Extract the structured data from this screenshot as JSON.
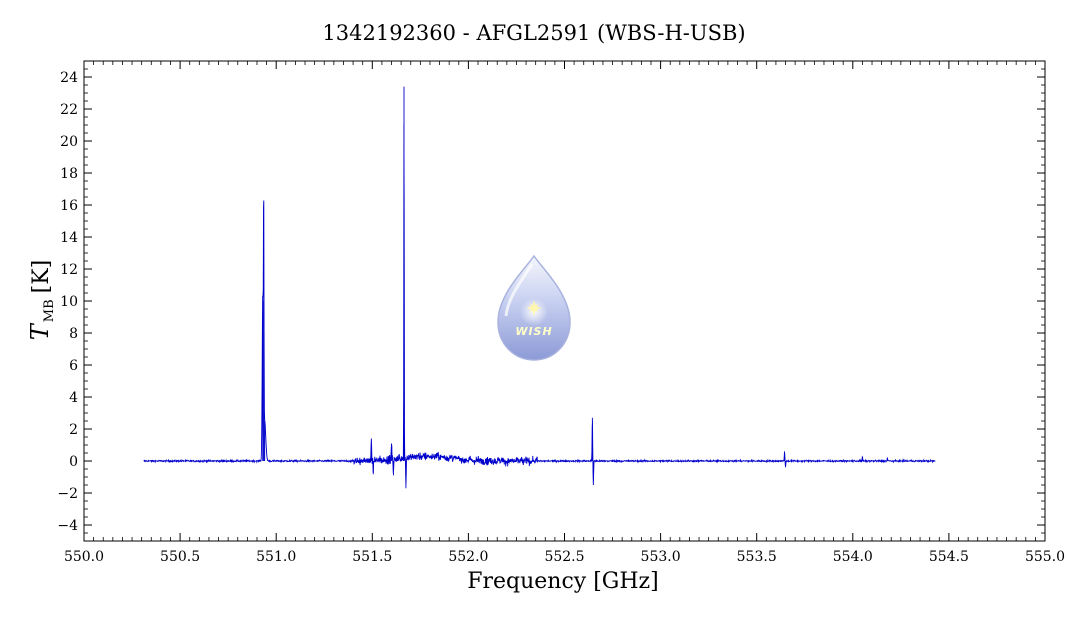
{
  "chart_data": {
    "type": "line",
    "title": "1342192360 - AFGL2591 (WBS-H-USB)",
    "xlabel": "Frequency [GHz]",
    "ylabel_main": "T",
    "ylabel_sub": "MB",
    "ylabel_unit": "[K]",
    "xlim": [
      550.0,
      555.0
    ],
    "ylim": [
      -5,
      25
    ],
    "x_ticks": [
      550.0,
      550.5,
      551.0,
      551.5,
      552.0,
      552.5,
      553.0,
      553.5,
      554.0,
      554.5,
      555.0
    ],
    "x_tick_labels": [
      "550.0",
      "550.5",
      "551.0",
      "551.5",
      "552.0",
      "552.5",
      "553.0",
      "553.5",
      "554.0",
      "554.5",
      "555.0"
    ],
    "y_ticks": [
      -4,
      -2,
      0,
      2,
      4,
      6,
      8,
      10,
      12,
      14,
      16,
      18,
      20,
      22,
      24
    ],
    "y_tick_labels": [
      "−4",
      "−2",
      "0",
      "2",
      "4",
      "6",
      "8",
      "10",
      "12",
      "14",
      "16",
      "18",
      "20",
      "22",
      "24"
    ],
    "series": [
      {
        "color": "#0000cc",
        "x_range": [
          550.31,
          554.43
        ],
        "baseline": 0.0,
        "features": [
          {
            "x": 550.93,
            "peak": 10.0,
            "width": 0.004,
            "kind": "emission"
          },
          {
            "x": 550.935,
            "peak": 13.8,
            "width": 0.002,
            "kind": "emission"
          },
          {
            "x": 550.94,
            "peak": 2.5,
            "width": 0.008,
            "kind": "emission"
          },
          {
            "x": 551.495,
            "peak": 1.4,
            "width": 0.002,
            "kind": "spike"
          },
          {
            "x": 551.505,
            "peak": -0.8,
            "width": 0.002,
            "kind": "spike"
          },
          {
            "x": 551.6,
            "peak": 1.0,
            "width": 0.002,
            "kind": "spike"
          },
          {
            "x": 551.61,
            "peak": -0.9,
            "width": 0.002,
            "kind": "spike"
          },
          {
            "x": 551.665,
            "peak": 23.4,
            "width": 0.0015,
            "kind": "emission"
          },
          {
            "x": 551.675,
            "peak": -1.7,
            "width": 0.002,
            "kind": "spike"
          },
          {
            "x": 552.645,
            "peak": 2.7,
            "width": 0.002,
            "kind": "spike"
          },
          {
            "x": 552.65,
            "peak": -1.5,
            "width": 0.002,
            "kind": "spike"
          },
          {
            "x": 553.645,
            "peak": 0.6,
            "width": 0.002,
            "kind": "spike"
          },
          {
            "x": 553.65,
            "peak": -0.4,
            "width": 0.002,
            "kind": "spike"
          },
          {
            "x": 554.05,
            "peak": 0.25,
            "width": 0.002,
            "kind": "spike"
          },
          {
            "x": 554.18,
            "peak": 0.2,
            "width": 0.002,
            "kind": "spike"
          }
        ],
        "noisy_region": {
          "x_range": [
            551.4,
            552.36
          ],
          "amplitude": 0.55,
          "hump_center": 551.78,
          "hump_height": 0.5
        }
      }
    ],
    "grid": false,
    "legend": "none"
  },
  "logo": {
    "text": "WISH",
    "icon": "water-drop-star-icon",
    "colors": {
      "drop_top": "#e8ecf8",
      "drop_bottom": "#8a98d4",
      "star": "#fff6b0",
      "text": "#ffffc8"
    }
  },
  "colors": {
    "line": "#0000cc",
    "axis": "#000000",
    "background": "#ffffff"
  }
}
